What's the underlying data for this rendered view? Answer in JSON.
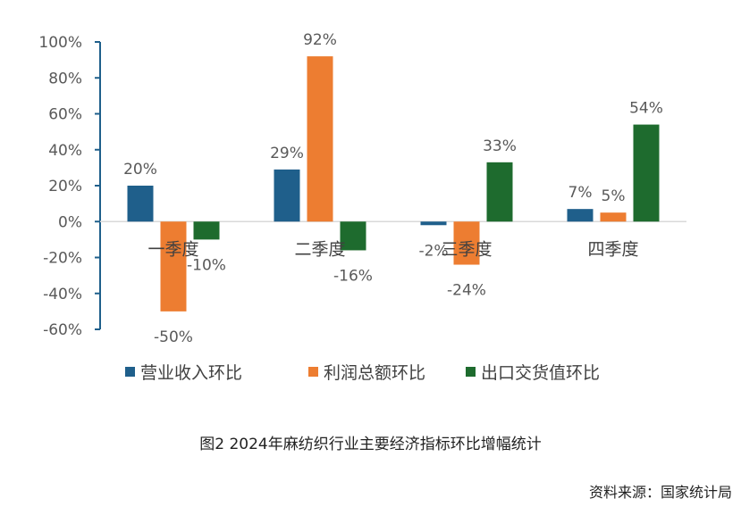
{
  "chart_data": {
    "type": "bar",
    "categories": [
      "一季度",
      "二季度",
      "三季度",
      "四季度"
    ],
    "series": [
      {
        "name": "营业收入环比",
        "values": [
          20,
          29,
          -2,
          7
        ],
        "labels": [
          "20%",
          "29%",
          "-2%",
          "7%"
        ],
        "color": "#1F5F8B"
      },
      {
        "name": "利润总额环比",
        "values": [
          -50,
          92,
          -24,
          5
        ],
        "labels": [
          "-50%",
          "92%",
          "-24%",
          "5%"
        ],
        "color": "#ED7D31"
      },
      {
        "name": "出口交货值环比",
        "values": [
          -10,
          -16,
          33,
          54
        ],
        "labels": [
          "-10%",
          "-16%",
          "33%",
          "54%"
        ],
        "color": "#1E6B2E"
      }
    ],
    "yticks": [
      "100%",
      "80%",
      "60%",
      "40%",
      "20%",
      "0%",
      "-20%",
      "-40%",
      "-60%"
    ],
    "ylim": [
      -60,
      100
    ],
    "grid": false,
    "legend": "bottom"
  },
  "caption": "图2  2024年麻纺织行业主要经济指标环比增幅统计",
  "source": "资料来源：国家统计局"
}
